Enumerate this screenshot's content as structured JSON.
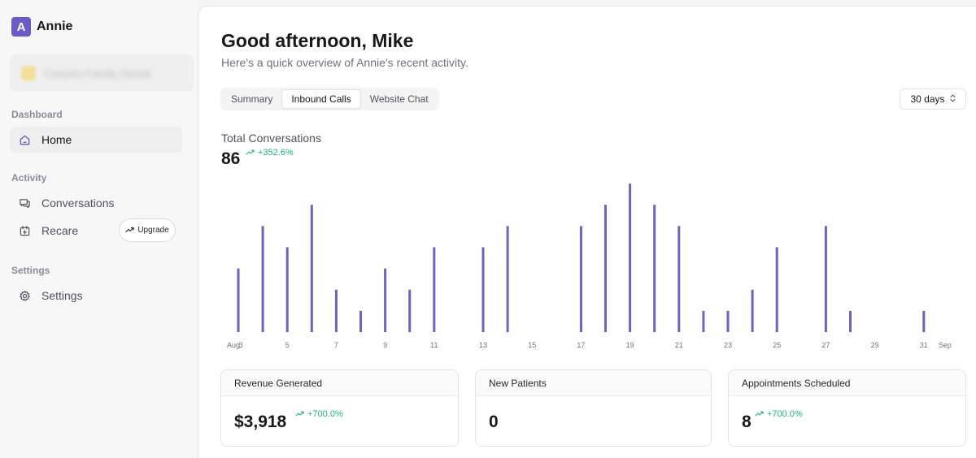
{
  "brand": {
    "logo_letter": "A",
    "name": "Annie",
    "accent": "#6b5bc4"
  },
  "org_switcher": {
    "name": "Conyers Family Dental"
  },
  "sidebar": {
    "sections": [
      {
        "label": "Dashboard"
      },
      {
        "label": "Activity"
      },
      {
        "label": "Settings"
      }
    ],
    "items": [
      {
        "label": "Home",
        "icon": "home-icon",
        "active": true
      },
      {
        "label": "Conversations",
        "icon": "chat-icon"
      },
      {
        "label": "Recare",
        "icon": "calendar-plus-icon"
      },
      {
        "label": "Settings",
        "icon": "gear-icon"
      }
    ],
    "upgrade_label": "Upgrade"
  },
  "header": {
    "greeting": "Good afternoon, Mike",
    "subtitle": "Here's a quick overview of Annie's recent activity."
  },
  "tabs": [
    {
      "label": "Summary"
    },
    {
      "label": "Inbound Calls",
      "active": true
    },
    {
      "label": "Website Chat"
    }
  ],
  "range": {
    "label": "30 days"
  },
  "total": {
    "label": "Total Conversations",
    "value": "86",
    "trend": "+352.6%"
  },
  "colors": {
    "bar": "#7361bd",
    "trend_up": "#22b573"
  },
  "chart_data": {
    "type": "bar",
    "month_start_label": "Aug",
    "month_end_label": "Sep",
    "categories": [
      "3",
      "4",
      "5",
      "6",
      "7",
      "8",
      "9",
      "10",
      "11",
      "12",
      "13",
      "14",
      "15",
      "16",
      "17",
      "18",
      "19",
      "20",
      "21",
      "22",
      "23",
      "24",
      "25",
      "26",
      "27",
      "28",
      "29",
      "30",
      "31"
    ],
    "tick_labels": [
      "3",
      "5",
      "7",
      "9",
      "11",
      "13",
      "15",
      "17",
      "19",
      "21",
      "23",
      "25",
      "27",
      "29",
      "31"
    ],
    "values": [
      3,
      5,
      4,
      6,
      2,
      1,
      3,
      2,
      4,
      0,
      4,
      5,
      0,
      0,
      5,
      6,
      7,
      6,
      5,
      1,
      1,
      2,
      4,
      0,
      5,
      1,
      0,
      0,
      1
    ],
    "ylim": [
      0,
      7.5
    ],
    "grid": false
  },
  "cards": [
    {
      "title": "Revenue Generated",
      "value": "$3,918",
      "trend": "+700.0%"
    },
    {
      "title": "New Patients",
      "value": "0",
      "trend": ""
    },
    {
      "title": "Appointments Scheduled",
      "value": "8",
      "trend": "+700.0%"
    }
  ]
}
